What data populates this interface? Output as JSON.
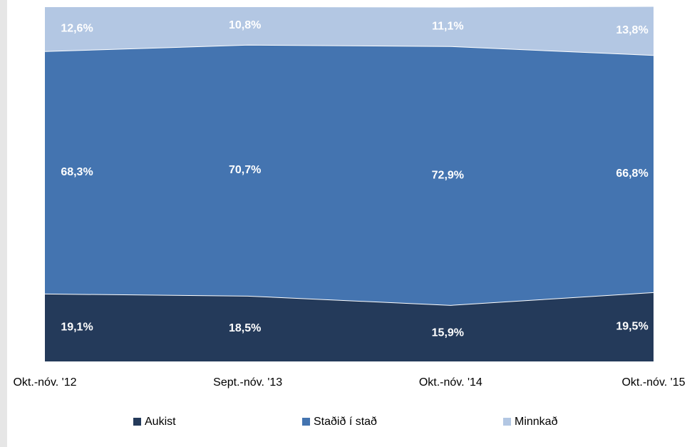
{
  "chart_data": {
    "type": "area",
    "stacked": true,
    "categories": [
      "Okt.-nóv. '12",
      "Sept.-nóv. '13",
      "Okt.-nóv. '14",
      "Okt.-nóv. '15"
    ],
    "series": [
      {
        "name": "Aukist",
        "color": "#243a5a",
        "values": [
          19.1,
          18.5,
          15.9,
          19.5
        ],
        "value_labels": [
          "19,1%",
          "18,5%",
          "15,9%",
          "19,5%"
        ]
      },
      {
        "name": "Staðið í stað",
        "color": "#4474b0",
        "values": [
          68.3,
          70.7,
          72.9,
          66.8
        ],
        "value_labels": [
          "68,3%",
          "70,7%",
          "72,9%",
          "66,8%"
        ]
      },
      {
        "name": "Minnkað",
        "color": "#b3c7e3",
        "values": [
          12.6,
          10.8,
          11.1,
          13.8
        ],
        "value_labels": [
          "12,6%",
          "10,8%",
          "11,1%",
          "13,8%"
        ]
      }
    ],
    "ylim": [
      0,
      100
    ],
    "legend": "bottom"
  }
}
